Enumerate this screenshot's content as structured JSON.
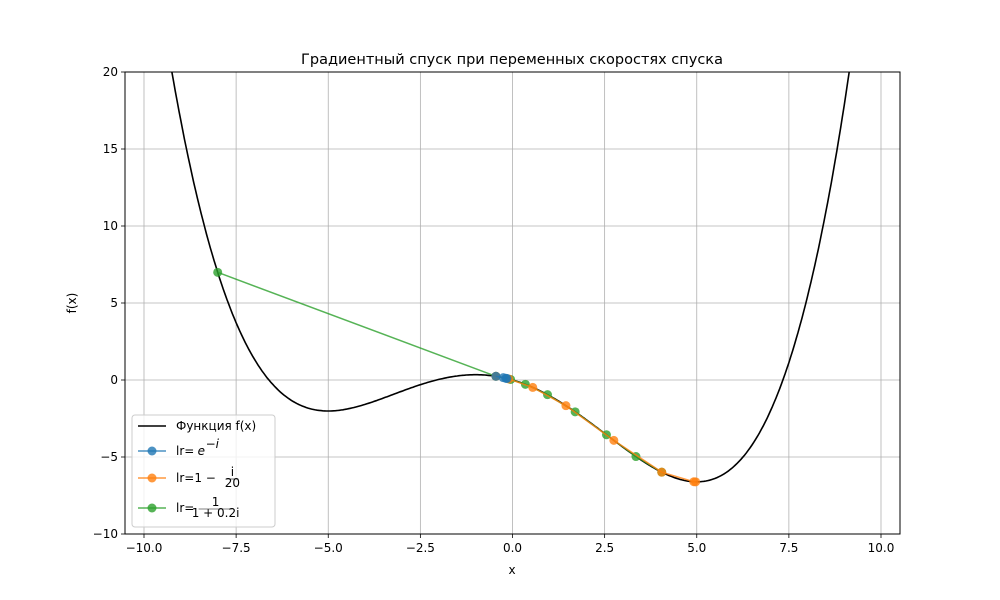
{
  "chart_data": {
    "type": "line",
    "title": "Градиентный спуск при переменных скоростях спуска",
    "xlabel": "x",
    "ylabel": "f(x)",
    "xlim": [
      -10.5,
      10.5
    ],
    "ylim": [
      -10,
      20
    ],
    "xticks": [
      "−10.0",
      "−7.5",
      "−5.0",
      "−2.5",
      "0.0",
      "2.5",
      "5.0",
      "7.5",
      "10.0"
    ],
    "xtick_values": [
      -10,
      -7.5,
      -5,
      -2.5,
      0,
      2.5,
      5,
      7.5,
      10
    ],
    "yticks": [
      "−10",
      "−5",
      "0",
      "5",
      "10",
      "15",
      "20"
    ],
    "ytick_values": [
      -10,
      -5,
      0,
      5,
      10,
      15,
      20
    ],
    "grid": true,
    "legend_position": "lower left",
    "function": {
      "name": "Функция f(x)",
      "coef": 0.0069,
      "color": "#000000"
    },
    "series": [
      {
        "name": "lr=e^{-i}",
        "legend_main": "lr=",
        "legend_math": "e",
        "legend_sup": "−i",
        "color": "#1f77b4",
        "x": [
          -0.45,
          -0.25,
          -0.18,
          -0.15
        ]
      },
      {
        "name": "lr=1-i/20",
        "legend_main": "lr=1 − ",
        "legend_num": "i",
        "legend_den": "20",
        "color": "#ff7f0e",
        "x": [
          -0.45,
          -0.1,
          0.55,
          1.45,
          2.75,
          4.05,
          4.92,
          4.97
        ]
      },
      {
        "name": "lr=1/(1+0.2i)",
        "legend_main": "lr=",
        "legend_num": "1",
        "legend_den": "1 + 0.2i",
        "color": "#2ca02c",
        "x": [
          -8.0,
          -0.45,
          -0.05,
          0.35,
          0.95,
          1.7,
          2.55,
          3.35,
          4.05
        ]
      }
    ]
  }
}
